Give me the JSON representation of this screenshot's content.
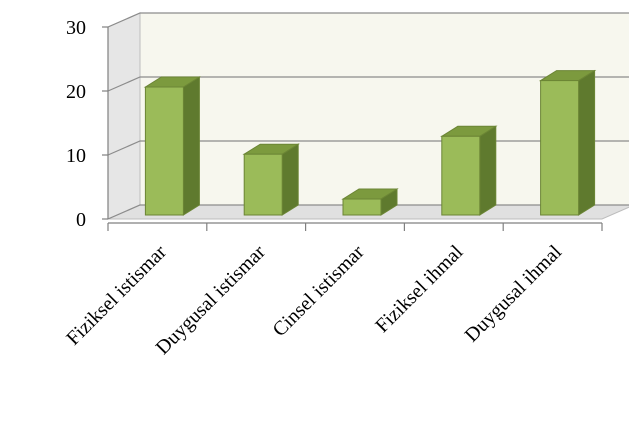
{
  "chart_data": {
    "type": "bar",
    "categories": [
      "Fiziksel istismar",
      "Duygusal istismar",
      "Cinsel istismar",
      "Fiziksel ihmal",
      "Duygusal ihmal"
    ],
    "values": [
      20,
      9.5,
      2.5,
      12.3,
      21
    ],
    "ylim": [
      0,
      30
    ],
    "yticks": [
      "0",
      "10",
      "20",
      "30"
    ],
    "grid": true,
    "three_d": true,
    "colors": {
      "bar_front": "#9BBB59",
      "bar_side": "#5F7A2E",
      "bar_top": "#7C9A3E",
      "bar_edge": "#6B8535",
      "back_wall": "#F7F7EE",
      "side_wall": "#E6E6E6",
      "floor": "#E0E0E0",
      "grid": "#8C8C8C"
    }
  }
}
